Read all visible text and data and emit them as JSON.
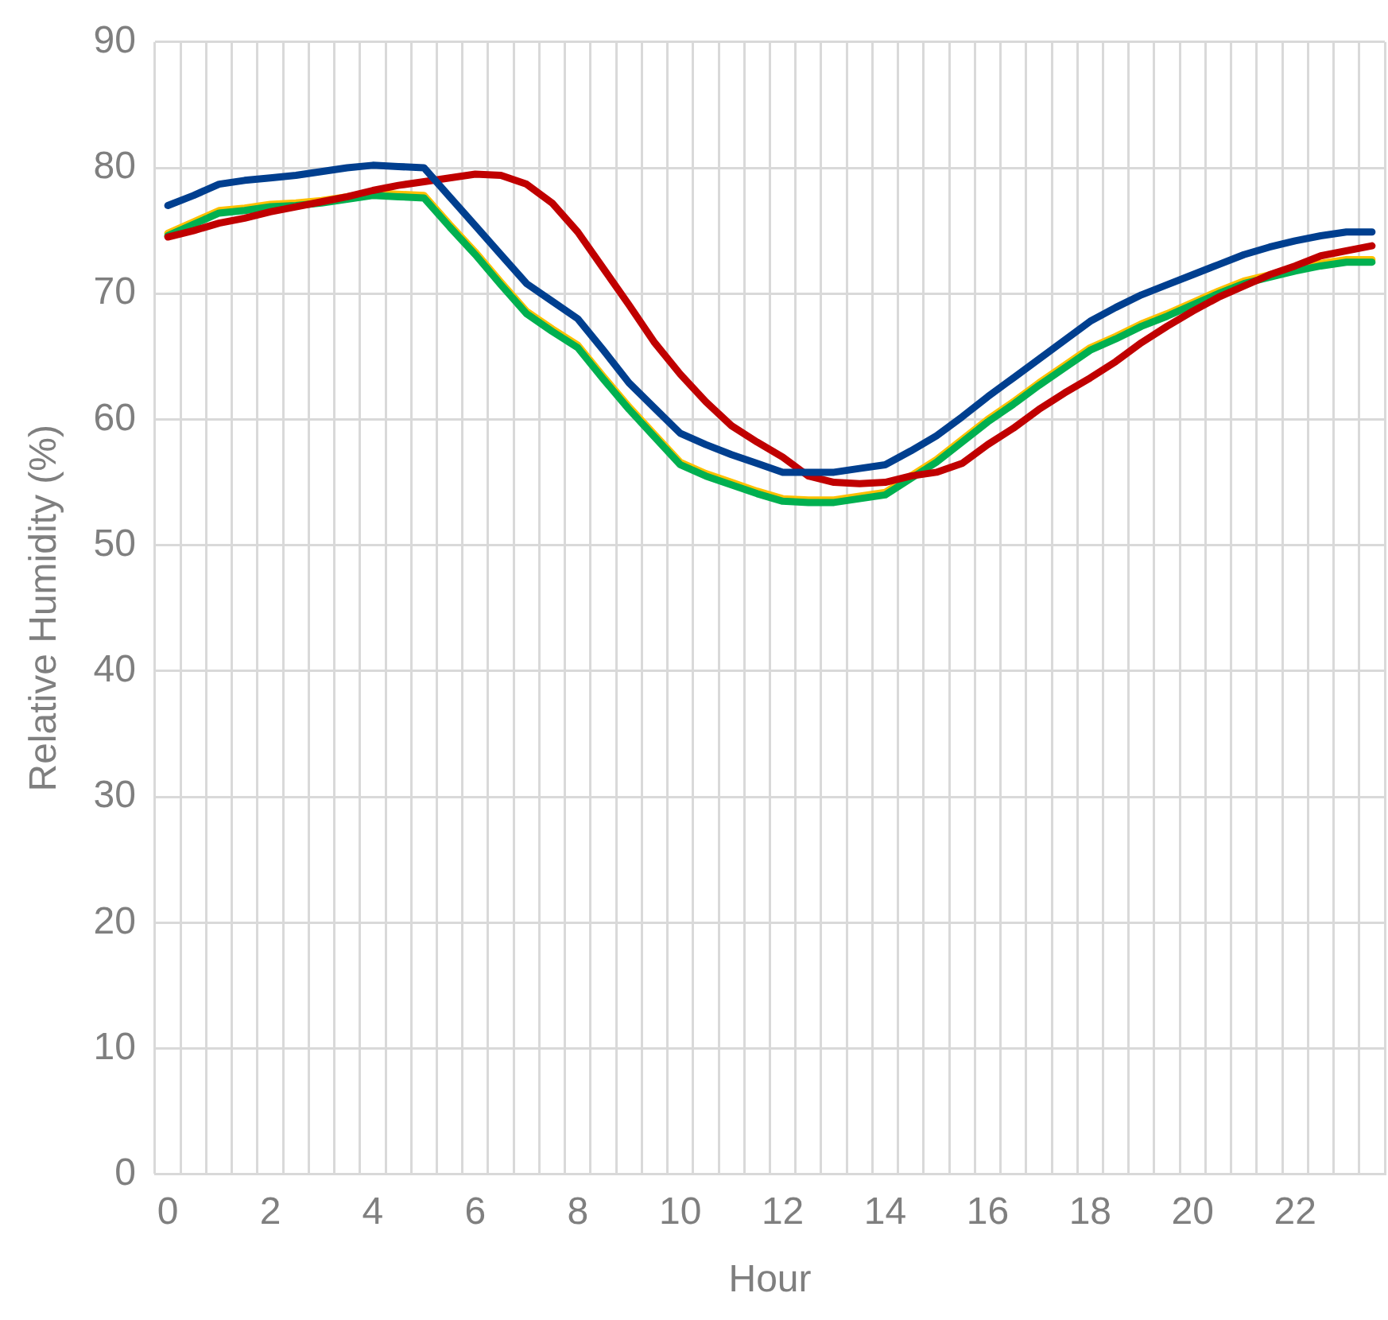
{
  "chart_data": {
    "type": "line",
    "xlabel": "Hour",
    "ylabel": "Relative Humidity (%)",
    "categories": [
      "0",
      null,
      null,
      null,
      "2",
      null,
      null,
      null,
      "4",
      null,
      null,
      null,
      "6",
      null,
      null,
      null,
      "8",
      null,
      null,
      null,
      "10",
      null,
      null,
      null,
      "12",
      null,
      null,
      null,
      "14",
      null,
      null,
      null,
      "16",
      null,
      null,
      null,
      "18",
      null,
      null,
      null,
      "20",
      null,
      null,
      null,
      "22",
      null,
      null,
      null
    ],
    "ylim": [
      0,
      90
    ],
    "yticks": [
      0,
      10,
      20,
      30,
      40,
      50,
      60,
      70,
      80,
      90
    ],
    "grid": true,
    "legend": false,
    "marker": "none",
    "line_style": "solid",
    "series": [
      {
        "color": "#ffc000",
        "values": [
          74.8,
          75.7,
          76.6,
          76.8,
          77.1,
          77.2,
          77.4,
          77.7,
          78.0,
          77.9,
          77.8,
          75.5,
          73.3,
          70.9,
          68.6,
          67.2,
          65.9,
          63.4,
          61.0,
          58.8,
          56.6,
          55.7,
          55.0,
          54.3,
          53.7,
          53.6,
          53.6,
          53.9,
          54.2,
          55.5,
          56.8,
          58.4,
          60.0,
          61.4,
          62.9,
          64.3,
          65.7,
          66.6,
          67.6,
          68.4,
          69.3,
          70.2,
          71.0,
          71.5,
          72.0,
          72.4,
          72.7,
          72.7
        ]
      },
      {
        "color": "#00b050",
        "values": [
          74.6,
          75.5,
          76.4,
          76.6,
          76.9,
          77.0,
          77.2,
          77.5,
          77.8,
          77.7,
          77.6,
          75.3,
          73.1,
          70.7,
          68.4,
          67.0,
          65.7,
          63.2,
          60.8,
          58.6,
          56.4,
          55.5,
          54.8,
          54.1,
          53.5,
          53.4,
          53.4,
          53.7,
          54.0,
          55.3,
          56.6,
          58.2,
          59.8,
          61.2,
          62.7,
          64.1,
          65.5,
          66.4,
          67.4,
          68.2,
          69.1,
          70.0,
          70.8,
          71.3,
          71.8,
          72.2,
          72.5,
          72.5
        ]
      },
      {
        "color": "#c00000",
        "values": [
          74.5,
          75.0,
          75.6,
          76.0,
          76.5,
          76.9,
          77.3,
          77.7,
          78.2,
          78.6,
          78.9,
          79.2,
          79.5,
          79.4,
          78.7,
          77.2,
          74.9,
          72.0,
          69.1,
          66.1,
          63.6,
          61.4,
          59.5,
          58.2,
          57.0,
          55.5,
          55.0,
          54.9,
          55.0,
          55.5,
          55.8,
          56.5,
          58.0,
          59.3,
          60.8,
          62.1,
          63.3,
          64.6,
          66.1,
          67.4,
          68.6,
          69.7,
          70.6,
          71.5,
          72.2,
          73.0,
          73.4,
          73.8
        ]
      },
      {
        "color": "#003f8f",
        "values": [
          77.0,
          77.8,
          78.7,
          79.0,
          79.2,
          79.4,
          79.7,
          80.0,
          80.2,
          80.1,
          80.0,
          77.7,
          75.4,
          73.1,
          70.8,
          69.4,
          68.0,
          65.5,
          62.9,
          60.9,
          58.9,
          58.0,
          57.2,
          56.5,
          55.8,
          55.8,
          55.8,
          56.1,
          56.4,
          57.5,
          58.7,
          60.2,
          61.8,
          63.3,
          64.8,
          66.3,
          67.8,
          68.9,
          69.9,
          70.7,
          71.5,
          72.3,
          73.1,
          73.7,
          74.2,
          74.6,
          74.9,
          74.9
        ]
      }
    ]
  }
}
